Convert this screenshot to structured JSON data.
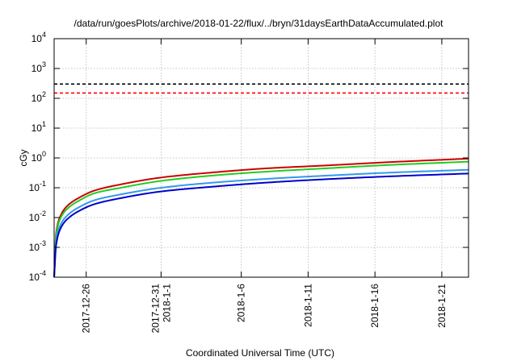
{
  "chart_data": {
    "type": "line",
    "title": "/data/run/goesPlots/archive/2018-01-22/flux/../bryn/31daysEarthDataAccumulated.plot",
    "xlabel": "Coordinated Universal Time (UTC)",
    "ylabel": "cGy",
    "yscale": "log",
    "ylim": [
      0.0001,
      10000
    ],
    "xlim_days": [
      0,
      31
    ],
    "grid": true,
    "y_ticks": [
      {
        "base": "10",
        "exp": "-4"
      },
      {
        "base": "10",
        "exp": "-3"
      },
      {
        "base": "10",
        "exp": "-2"
      },
      {
        "base": "10",
        "exp": "-1"
      },
      {
        "base": "10",
        "exp": "0"
      },
      {
        "base": "10",
        "exp": "1"
      },
      {
        "base": "10",
        "exp": "2"
      },
      {
        "base": "10",
        "exp": "3"
      },
      {
        "base": "10",
        "exp": "4"
      }
    ],
    "x_ticks": [
      {
        "lines": [
          "2017-12-26"
        ],
        "day": 2.4
      },
      {
        "lines": [
          "2017-12-31",
          "2018-1-1"
        ],
        "day": 8.0
      },
      {
        "lines": [
          "2018-1-6"
        ],
        "day": 14.0
      },
      {
        "lines": [
          "2018-1-11"
        ],
        "day": 19.0
      },
      {
        "lines": [
          "2018-1-16"
        ],
        "day": 24.0
      },
      {
        "lines": [
          "2018-1-21"
        ],
        "day": 29.0
      }
    ],
    "reference_lines": [
      {
        "value": 300,
        "color": "#000000"
      },
      {
        "value": 150,
        "color": "#ff0000"
      }
    ],
    "series": [
      {
        "color": "#cc0000",
        "x": [
          0,
          0.15,
          0.5,
          1,
          2,
          3,
          5,
          8,
          12,
          16,
          20,
          25,
          31
        ],
        "y": [
          0.0001,
          0.003,
          0.012,
          0.025,
          0.05,
          0.08,
          0.13,
          0.22,
          0.33,
          0.45,
          0.55,
          0.72,
          0.95
        ]
      },
      {
        "color": "#22cc22",
        "x": [
          0,
          0.15,
          0.5,
          1,
          2,
          3,
          5,
          8,
          12,
          16,
          20,
          25,
          31
        ],
        "y": [
          0.0001,
          0.0025,
          0.01,
          0.02,
          0.04,
          0.065,
          0.1,
          0.17,
          0.26,
          0.35,
          0.44,
          0.58,
          0.75
        ]
      },
      {
        "color": "#3399ee",
        "x": [
          0,
          0.15,
          0.5,
          1,
          2,
          3,
          5,
          8,
          12,
          16,
          20,
          25,
          31
        ],
        "y": [
          0.0001,
          0.0016,
          0.006,
          0.012,
          0.024,
          0.038,
          0.06,
          0.1,
          0.15,
          0.2,
          0.25,
          0.32,
          0.4
        ]
      },
      {
        "color": "#0000cc",
        "x": [
          0,
          0.15,
          0.5,
          1,
          2,
          3,
          5,
          8,
          12,
          16,
          20,
          25,
          31
        ],
        "y": [
          0.0001,
          0.0012,
          0.0045,
          0.009,
          0.018,
          0.028,
          0.045,
          0.075,
          0.11,
          0.15,
          0.19,
          0.24,
          0.3
        ]
      }
    ]
  }
}
